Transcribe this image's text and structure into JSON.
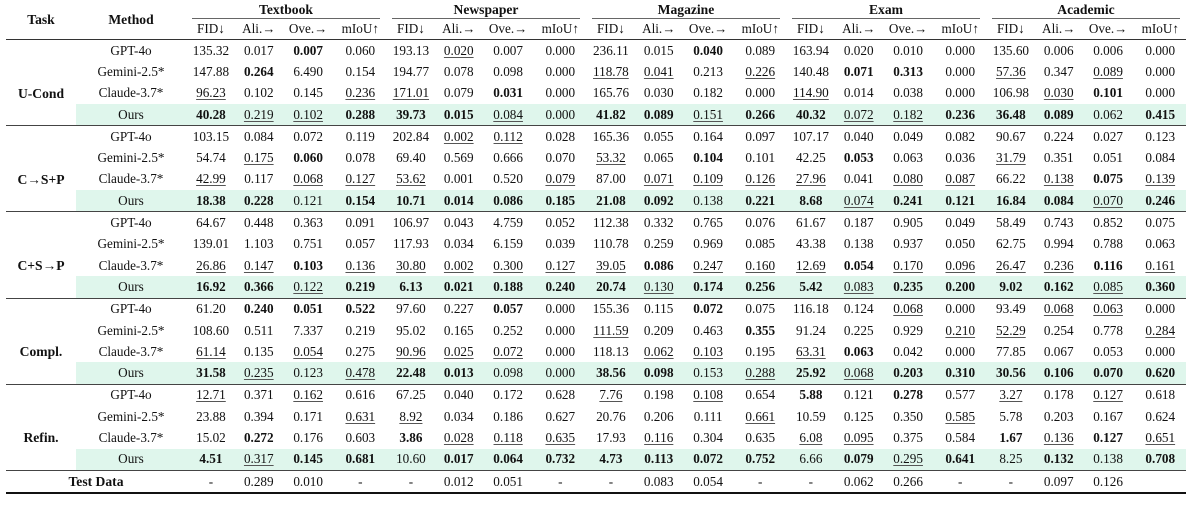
{
  "header": {
    "task": "Task",
    "method": "Method",
    "groups": [
      "Textbook",
      "Newspaper",
      "Magazine",
      "Exam",
      "Academic"
    ],
    "metrics": [
      "FID↓",
      "Ali.→",
      "Ove.→",
      "mIoU↑"
    ]
  },
  "sections": [
    {
      "task": "U-Cond",
      "rows": [
        {
          "method": "GPT-4o",
          "values": [
            "135.32",
            "0.017",
            "0.007",
            "0.060",
            "193.13",
            "0.020",
            "0.007",
            "0.000",
            "236.11",
            "0.015",
            "0.040",
            "0.089",
            "163.94",
            "0.020",
            "0.010",
            "0.000",
            "135.60",
            "0.006",
            "0.006",
            "0.000"
          ],
          "styles": [
            "",
            "",
            "b",
            "",
            "",
            "u",
            "",
            "",
            "",
            "",
            "b",
            "",
            "",
            "",
            "",
            "",
            "",
            "",
            "",
            ""
          ]
        },
        {
          "method": "Gemini-2.5*",
          "values": [
            "147.88",
            "0.264",
            "6.490",
            "0.154",
            "194.77",
            "0.078",
            "0.098",
            "0.000",
            "118.78",
            "0.041",
            "0.213",
            "0.226",
            "140.48",
            "0.071",
            "0.313",
            "0.000",
            "57.36",
            "0.347",
            "0.089",
            "0.000"
          ],
          "styles": [
            "",
            "b",
            "",
            "",
            "",
            "",
            "",
            "",
            "u",
            "u",
            "",
            "u",
            "",
            "b",
            "b",
            "",
            "u",
            "",
            "u",
            ""
          ]
        },
        {
          "method": "Claude-3.7*",
          "values": [
            "96.23",
            "0.102",
            "0.145",
            "0.236",
            "171.01",
            "0.079",
            "0.031",
            "0.000",
            "165.76",
            "0.030",
            "0.182",
            "0.000",
            "114.90",
            "0.014",
            "0.038",
            "0.000",
            "106.98",
            "0.030",
            "0.101",
            "0.000"
          ],
          "styles": [
            "u",
            "",
            "",
            "u",
            "u",
            "",
            "b",
            "",
            "",
            "",
            "",
            "",
            "u",
            "",
            "",
            "",
            "",
            "u",
            "b",
            ""
          ]
        },
        {
          "method": "Ours",
          "values": [
            "40.28",
            "0.219",
            "0.102",
            "0.288",
            "39.73",
            "0.015",
            "0.084",
            "0.000",
            "41.82",
            "0.089",
            "0.151",
            "0.266",
            "40.32",
            "0.072",
            "0.182",
            "0.236",
            "36.48",
            "0.089",
            "0.062",
            "0.415"
          ],
          "styles": [
            "b",
            "u",
            "u",
            "b",
            "b",
            "b",
            "u",
            "",
            "b",
            "b",
            "u",
            "b",
            "b",
            "u",
            "u",
            "b",
            "b",
            "b",
            "",
            "b"
          ]
        }
      ]
    },
    {
      "task": "C→S+P",
      "rows": [
        {
          "method": "GPT-4o",
          "values": [
            "103.15",
            "0.084",
            "0.072",
            "0.119",
            "202.84",
            "0.002",
            "0.112",
            "0.028",
            "165.36",
            "0.055",
            "0.164",
            "0.097",
            "107.17",
            "0.040",
            "0.049",
            "0.082",
            "90.67",
            "0.224",
            "0.027",
            "0.123"
          ],
          "styles": [
            "",
            "",
            "",
            "",
            "",
            "u",
            "u",
            "",
            "",
            "",
            "",
            "",
            "",
            "",
            "",
            "",
            "",
            "",
            "",
            ""
          ]
        },
        {
          "method": "Gemini-2.5*",
          "values": [
            "54.74",
            "0.175",
            "0.060",
            "0.078",
            "69.40",
            "0.569",
            "0.666",
            "0.070",
            "53.32",
            "0.065",
            "0.104",
            "0.101",
            "42.25",
            "0.053",
            "0.063",
            "0.036",
            "31.79",
            "0.351",
            "0.051",
            "0.084"
          ],
          "styles": [
            "",
            "u",
            "b",
            "",
            "",
            "",
            "",
            "",
            "u",
            "",
            "b",
            "",
            "",
            "b",
            "",
            "",
            "u",
            "",
            "",
            ""
          ]
        },
        {
          "method": "Claude-3.7*",
          "values": [
            "42.99",
            "0.117",
            "0.068",
            "0.127",
            "53.62",
            "0.001",
            "0.520",
            "0.079",
            "87.00",
            "0.071",
            "0.109",
            "0.126",
            "27.96",
            "0.041",
            "0.080",
            "0.087",
            "66.22",
            "0.138",
            "0.075",
            "0.139"
          ],
          "styles": [
            "u",
            "",
            "u",
            "u",
            "u",
            "",
            "",
            "u",
            "",
            "u",
            "u",
            "u",
            "u",
            "",
            "u",
            "u",
            "",
            "u",
            "b",
            "u"
          ]
        },
        {
          "method": "Ours",
          "values": [
            "18.38",
            "0.228",
            "0.121",
            "0.154",
            "10.71",
            "0.014",
            "0.086",
            "0.185",
            "21.08",
            "0.092",
            "0.138",
            "0.221",
            "8.68",
            "0.074",
            "0.241",
            "0.121",
            "16.84",
            "0.084",
            "0.070",
            "0.246"
          ],
          "styles": [
            "b",
            "b",
            "",
            "b",
            "b",
            "b",
            "b",
            "b",
            "b",
            "b",
            "",
            "b",
            "b",
            "u",
            "b",
            "b",
            "b",
            "b",
            "u",
            "b"
          ]
        }
      ]
    },
    {
      "task": "C+S→P",
      "rows": [
        {
          "method": "GPT-4o",
          "values": [
            "64.67",
            "0.448",
            "0.363",
            "0.091",
            "106.97",
            "0.043",
            "4.759",
            "0.052",
            "112.38",
            "0.332",
            "0.765",
            "0.076",
            "61.67",
            "0.187",
            "0.905",
            "0.049",
            "58.49",
            "0.743",
            "0.852",
            "0.075"
          ],
          "styles": [
            "",
            "",
            "",
            "",
            "",
            "",
            "",
            "",
            "",
            "",
            "",
            "",
            "",
            "",
            "",
            "",
            "",
            "",
            "",
            ""
          ]
        },
        {
          "method": "Gemini-2.5*",
          "values": [
            "139.01",
            "1.103",
            "0.751",
            "0.057",
            "117.93",
            "0.034",
            "6.159",
            "0.039",
            "110.78",
            "0.259",
            "0.969",
            "0.085",
            "43.38",
            "0.138",
            "0.937",
            "0.050",
            "62.75",
            "0.994",
            "0.788",
            "0.063"
          ],
          "styles": [
            "",
            "",
            "",
            "",
            "",
            "",
            "",
            "",
            "",
            "",
            "",
            "",
            "",
            "",
            "",
            "",
            "",
            "",
            "",
            ""
          ]
        },
        {
          "method": "Claude-3.7*",
          "values": [
            "26.86",
            "0.147",
            "0.103",
            "0.136",
            "30.80",
            "0.002",
            "0.300",
            "0.127",
            "39.05",
            "0.086",
            "0.247",
            "0.160",
            "12.69",
            "0.054",
            "0.170",
            "0.096",
            "26.47",
            "0.236",
            "0.116",
            "0.161"
          ],
          "styles": [
            "u",
            "u",
            "b",
            "u",
            "u",
            "u",
            "u",
            "u",
            "u",
            "b",
            "u",
            "u",
            "u",
            "b",
            "u",
            "u",
            "u",
            "u",
            "b",
            "u"
          ]
        },
        {
          "method": "Ours",
          "values": [
            "16.92",
            "0.366",
            "0.122",
            "0.219",
            "6.13",
            "0.021",
            "0.188",
            "0.240",
            "20.74",
            "0.130",
            "0.174",
            "0.256",
            "5.42",
            "0.083",
            "0.235",
            "0.200",
            "9.02",
            "0.162",
            "0.085",
            "0.360"
          ],
          "styles": [
            "b",
            "b",
            "u",
            "b",
            "b",
            "b",
            "b",
            "b",
            "b",
            "u",
            "b",
            "b",
            "b",
            "u",
            "b",
            "b",
            "b",
            "b",
            "u",
            "b"
          ]
        }
      ]
    },
    {
      "task": "Compl.",
      "rows": [
        {
          "method": "GPT-4o",
          "values": [
            "61.20",
            "0.240",
            "0.051",
            "0.522",
            "97.60",
            "0.227",
            "0.057",
            "0.000",
            "155.36",
            "0.115",
            "0.072",
            "0.075",
            "116.18",
            "0.124",
            "0.068",
            "0.000",
            "93.49",
            "0.068",
            "0.063",
            "0.000"
          ],
          "styles": [
            "",
            "b",
            "b",
            "b",
            "",
            "",
            "b",
            "",
            "",
            "",
            "b",
            "",
            "",
            "",
            "u",
            "",
            "",
            "u",
            "u",
            ""
          ]
        },
        {
          "method": "Gemini-2.5*",
          "values": [
            "108.60",
            "0.511",
            "7.337",
            "0.219",
            "95.02",
            "0.165",
            "0.252",
            "0.000",
            "111.59",
            "0.209",
            "0.463",
            "0.355",
            "91.24",
            "0.225",
            "0.929",
            "0.210",
            "52.29",
            "0.254",
            "0.778",
            "0.284"
          ],
          "styles": [
            "",
            "",
            "",
            "",
            "",
            "",
            "",
            "",
            "u",
            "",
            "",
            "b",
            "",
            "",
            "",
            "u",
            "u",
            "",
            "",
            "u"
          ]
        },
        {
          "method": "Claude-3.7*",
          "values": [
            "61.14",
            "0.135",
            "0.054",
            "0.275",
            "90.96",
            "0.025",
            "0.072",
            "0.000",
            "118.13",
            "0.062",
            "0.103",
            "0.195",
            "63.31",
            "0.063",
            "0.042",
            "0.000",
            "77.85",
            "0.067",
            "0.053",
            "0.000"
          ],
          "styles": [
            "u",
            "",
            "u",
            "",
            "u",
            "u",
            "u",
            "",
            "",
            "u",
            "u",
            "",
            "u",
            "b",
            "",
            "",
            "",
            "",
            "",
            ""
          ]
        },
        {
          "method": "Ours",
          "values": [
            "31.58",
            "0.235",
            "0.123",
            "0.478",
            "22.48",
            "0.013",
            "0.098",
            "0.000",
            "38.56",
            "0.098",
            "0.153",
            "0.288",
            "25.92",
            "0.068",
            "0.203",
            "0.310",
            "30.56",
            "0.106",
            "0.070",
            "0.620"
          ],
          "styles": [
            "b",
            "u",
            "",
            "u",
            "b",
            "b",
            "",
            "",
            "b",
            "b",
            "",
            "u",
            "b",
            "u",
            "b",
            "b",
            "b",
            "b",
            "b",
            "b"
          ]
        }
      ]
    },
    {
      "task": "Refin.",
      "rows": [
        {
          "method": "GPT-4o",
          "values": [
            "12.71",
            "0.371",
            "0.162",
            "0.616",
            "67.25",
            "0.040",
            "0.172",
            "0.628",
            "7.76",
            "0.198",
            "0.108",
            "0.654",
            "5.88",
            "0.121",
            "0.278",
            "0.577",
            "3.27",
            "0.178",
            "0.127",
            "0.618"
          ],
          "styles": [
            "u",
            "",
            "u",
            "",
            "",
            "",
            "",
            "",
            "u",
            "",
            "u",
            "",
            "b",
            "",
            "b",
            "",
            "u",
            "",
            "u",
            ""
          ]
        },
        {
          "method": "Gemini-2.5*",
          "values": [
            "23.88",
            "0.394",
            "0.171",
            "0.631",
            "8.92",
            "0.034",
            "0.186",
            "0.627",
            "20.76",
            "0.206",
            "0.111",
            "0.661",
            "10.59",
            "0.125",
            "0.350",
            "0.585",
            "5.78",
            "0.203",
            "0.167",
            "0.624"
          ],
          "styles": [
            "",
            "",
            "",
            "u",
            "u",
            "",
            "",
            "",
            "",
            "",
            "",
            "u",
            "",
            "",
            "",
            "u",
            "",
            "",
            "",
            ""
          ]
        },
        {
          "method": "Claude-3.7*",
          "values": [
            "15.02",
            "0.272",
            "0.176",
            "0.603",
            "3.86",
            "0.028",
            "0.118",
            "0.635",
            "17.93",
            "0.116",
            "0.304",
            "0.635",
            "6.08",
            "0.095",
            "0.375",
            "0.584",
            "1.67",
            "0.136",
            "0.127",
            "0.651"
          ],
          "styles": [
            "",
            "b",
            "",
            "",
            "b",
            "u",
            "u",
            "u",
            "",
            "u",
            "",
            "",
            "u",
            "u",
            "",
            "",
            "b",
            "u",
            "b",
            "u"
          ]
        },
        {
          "method": "Ours",
          "values": [
            "4.51",
            "0.317",
            "0.145",
            "0.681",
            "10.60",
            "0.017",
            "0.064",
            "0.732",
            "4.73",
            "0.113",
            "0.072",
            "0.752",
            "6.66",
            "0.079",
            "0.295",
            "0.641",
            "8.25",
            "0.132",
            "0.138",
            "0.708"
          ],
          "styles": [
            "b",
            "u",
            "b",
            "b",
            "",
            "b",
            "b",
            "b",
            "b",
            "b",
            "b",
            "b",
            "",
            "b",
            "u",
            "b",
            "",
            "b",
            "",
            "b"
          ]
        }
      ]
    }
  ],
  "test_row": {
    "label": "Test Data",
    "values": [
      "-",
      "0.289",
      "0.010",
      "-",
      "-",
      "0.012",
      "0.051",
      "-",
      "-",
      "0.083",
      "0.054",
      "-",
      "-",
      "0.062",
      "0.266",
      "-",
      "-",
      "0.097",
      "0.126",
      ""
    ]
  },
  "colors": {
    "ours_highlight": "#dff6ec"
  }
}
